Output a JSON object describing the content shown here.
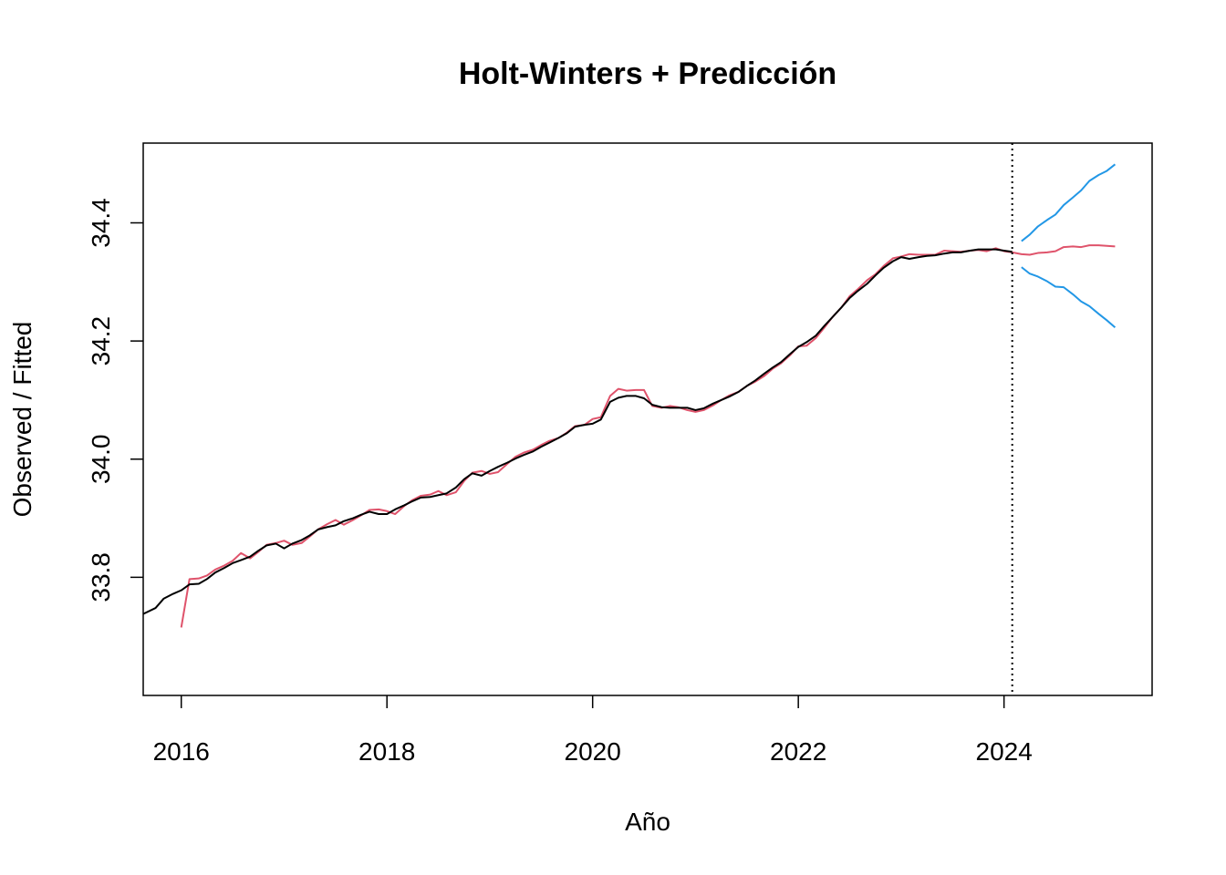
{
  "chart_data": {
    "type": "line",
    "title": "Holt-Winters + Predicción",
    "xlabel": "Año",
    "ylabel": "Observed / Fitted",
    "xlim": [
      2015.63,
      2025.44
    ],
    "ylim": [
      33.6,
      34.535
    ],
    "x_ticks": [
      2016,
      2018,
      2020,
      2022,
      2024
    ],
    "y_ticks": [
      33.8,
      34.0,
      34.2,
      34.4
    ],
    "grid": false,
    "legend": "none",
    "forecast_start": 2024.08,
    "colors": {
      "observed": "#000000",
      "fitted": "#DF536B",
      "forecast": "#DF536B",
      "bounds": "#2297E6",
      "marker_line": "#000000"
    },
    "series": [
      {
        "role": "observed",
        "x": [
          2015.63,
          2015.75,
          2015.83,
          2015.92,
          2016.0,
          2016.08,
          2016.17,
          2016.25,
          2016.33,
          2016.42,
          2016.5,
          2016.58,
          2016.67,
          2016.75,
          2016.83,
          2016.92,
          2017.0,
          2017.08,
          2017.17,
          2017.25,
          2017.33,
          2017.42,
          2017.5,
          2017.58,
          2017.67,
          2017.75,
          2017.83,
          2017.92,
          2018.0,
          2018.08,
          2018.17,
          2018.25,
          2018.33,
          2018.42,
          2018.5,
          2018.58,
          2018.67,
          2018.75,
          2018.83,
          2018.92,
          2019.0,
          2019.08,
          2019.17,
          2019.25,
          2019.33,
          2019.42,
          2019.5,
          2019.58,
          2019.67,
          2019.75,
          2019.83,
          2019.92,
          2020.0,
          2020.08,
          2020.17,
          2020.25,
          2020.33,
          2020.42,
          2020.5,
          2020.58,
          2020.67,
          2020.75,
          2020.83,
          2020.92,
          2021.0,
          2021.08,
          2021.17,
          2021.25,
          2021.33,
          2021.42,
          2021.5,
          2021.58,
          2021.67,
          2021.75,
          2021.83,
          2021.92,
          2022.0,
          2022.08,
          2022.17,
          2022.25,
          2022.33,
          2022.42,
          2022.5,
          2022.58,
          2022.67,
          2022.75,
          2022.83,
          2022.92,
          2023.0,
          2023.08,
          2023.17,
          2023.25,
          2023.33,
          2023.42,
          2023.5,
          2023.58,
          2023.67,
          2023.75,
          2023.83,
          2023.92,
          2024.0,
          2024.08
        ],
        "y": [
          33.738,
          33.748,
          33.764,
          33.772,
          33.778,
          33.788,
          33.789,
          33.797,
          33.808,
          33.816,
          33.824,
          33.829,
          33.835,
          33.845,
          33.854,
          33.857,
          33.849,
          33.857,
          33.863,
          33.871,
          33.881,
          33.885,
          33.888,
          33.895,
          33.9,
          33.906,
          33.911,
          33.907,
          33.907,
          33.915,
          33.922,
          33.929,
          33.935,
          33.936,
          33.939,
          33.942,
          33.952,
          33.966,
          33.976,
          33.972,
          33.98,
          33.987,
          33.994,
          34.001,
          34.007,
          34.013,
          34.021,
          34.028,
          34.036,
          34.044,
          34.055,
          34.058,
          34.06,
          34.067,
          34.097,
          34.104,
          34.107,
          34.107,
          34.103,
          34.092,
          34.088,
          34.087,
          34.087,
          34.087,
          34.083,
          34.086,
          34.094,
          34.1,
          34.106,
          34.114,
          34.124,
          34.133,
          34.145,
          34.155,
          34.164,
          34.178,
          34.19,
          34.198,
          34.209,
          34.225,
          34.24,
          34.257,
          34.273,
          34.285,
          34.297,
          34.311,
          34.324,
          34.335,
          34.342,
          34.339,
          34.342,
          34.344,
          34.345,
          34.348,
          34.35,
          34.35,
          34.353,
          34.355,
          34.355,
          34.355,
          34.353,
          34.351
        ]
      },
      {
        "role": "fitted",
        "x": [
          2016.0,
          2016.08,
          2016.17,
          2016.25,
          2016.33,
          2016.42,
          2016.5,
          2016.58,
          2016.67,
          2016.75,
          2016.83,
          2016.92,
          2017.0,
          2017.08,
          2017.17,
          2017.25,
          2017.33,
          2017.42,
          2017.5,
          2017.58,
          2017.67,
          2017.75,
          2017.83,
          2017.92,
          2018.0,
          2018.08,
          2018.17,
          2018.25,
          2018.33,
          2018.42,
          2018.5,
          2018.58,
          2018.67,
          2018.75,
          2018.83,
          2018.92,
          2019.0,
          2019.08,
          2019.17,
          2019.25,
          2019.33,
          2019.42,
          2019.5,
          2019.58,
          2019.67,
          2019.75,
          2019.83,
          2019.92,
          2020.0,
          2020.08,
          2020.17,
          2020.25,
          2020.33,
          2020.42,
          2020.5,
          2020.58,
          2020.67,
          2020.75,
          2020.83,
          2020.92,
          2021.0,
          2021.08,
          2021.17,
          2021.25,
          2021.33,
          2021.42,
          2021.5,
          2021.58,
          2021.67,
          2021.75,
          2021.83,
          2021.92,
          2022.0,
          2022.08,
          2022.17,
          2022.25,
          2022.33,
          2022.42,
          2022.5,
          2022.58,
          2022.67,
          2022.75,
          2022.83,
          2022.92,
          2023.0,
          2023.08,
          2023.17,
          2023.25,
          2023.33,
          2023.42,
          2023.5,
          2023.58,
          2023.67,
          2023.75,
          2023.83,
          2023.92,
          2024.0,
          2024.08
        ],
        "y": [
          33.715,
          33.797,
          33.798,
          33.803,
          33.813,
          33.82,
          33.828,
          33.841,
          33.832,
          33.843,
          33.855,
          33.858,
          33.862,
          33.855,
          33.858,
          33.869,
          33.881,
          33.89,
          33.897,
          33.889,
          33.897,
          33.905,
          33.914,
          33.915,
          33.912,
          33.907,
          33.921,
          33.931,
          33.938,
          33.94,
          33.946,
          33.939,
          33.944,
          33.963,
          33.977,
          33.98,
          33.975,
          33.978,
          33.992,
          34.004,
          34.011,
          34.016,
          34.024,
          34.031,
          34.036,
          34.045,
          34.056,
          34.058,
          34.068,
          34.071,
          34.107,
          34.119,
          34.116,
          34.117,
          34.117,
          34.09,
          34.087,
          34.09,
          34.088,
          34.083,
          34.08,
          34.083,
          34.091,
          34.1,
          34.108,
          34.114,
          34.124,
          34.131,
          34.141,
          34.153,
          34.162,
          34.176,
          34.191,
          34.192,
          34.205,
          34.222,
          34.24,
          34.257,
          34.276,
          34.288,
          34.303,
          34.313,
          34.327,
          34.34,
          34.343,
          34.347,
          34.346,
          34.346,
          34.346,
          34.353,
          34.352,
          34.351,
          34.353,
          34.354,
          34.352,
          34.357,
          34.352,
          34.35
        ]
      },
      {
        "role": "forecast",
        "x": [
          2024.08,
          2024.17,
          2024.25,
          2024.33,
          2024.42,
          2024.5,
          2024.58,
          2024.67,
          2024.75,
          2024.83,
          2024.92,
          2025.0,
          2025.08
        ],
        "y": [
          34.35,
          34.347,
          34.346,
          34.349,
          34.35,
          34.352,
          34.359,
          34.36,
          34.359,
          34.362,
          34.362,
          34.361,
          34.36
        ]
      },
      {
        "role": "upper-bound",
        "x": [
          2024.17,
          2024.25,
          2024.33,
          2024.42,
          2024.5,
          2024.58,
          2024.67,
          2024.75,
          2024.83,
          2024.92,
          2025.0,
          2025.08
        ],
        "y": [
          34.369,
          34.38,
          34.394,
          34.405,
          34.414,
          34.43,
          34.443,
          34.455,
          34.471,
          34.481,
          34.488,
          34.499
        ]
      },
      {
        "role": "lower-bound",
        "x": [
          2024.17,
          2024.25,
          2024.33,
          2024.42,
          2024.5,
          2024.58,
          2024.67,
          2024.75,
          2024.83,
          2024.92,
          2025.0,
          2025.08
        ],
        "y": [
          34.325,
          34.314,
          34.309,
          34.301,
          34.292,
          34.291,
          34.279,
          34.267,
          34.259,
          34.246,
          34.235,
          34.223
        ]
      }
    ]
  }
}
